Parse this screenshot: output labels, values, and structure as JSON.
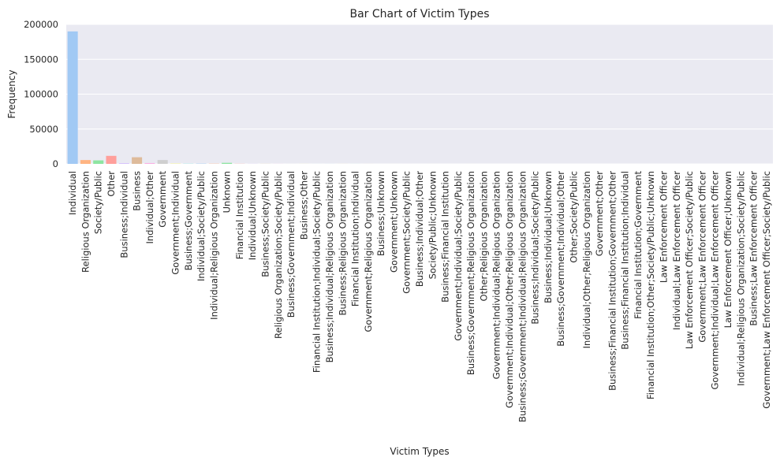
{
  "chart_data": {
    "type": "bar",
    "title": "Bar Chart of Victim Types",
    "xlabel": "Victim Types",
    "ylabel": "Frequency",
    "ylim": [
      0,
      200000
    ],
    "yticks": [
      0,
      50000,
      100000,
      150000,
      200000
    ],
    "grid": true,
    "legend": "none",
    "background": "#EAEAF2",
    "grid_color": "#ffffff",
    "palette": [
      "#A1C9F4",
      "#FFB482",
      "#8DE5A1",
      "#FF9F9B",
      "#D0BBFF",
      "#DEBB9B",
      "#FAB0E4",
      "#CFCFCF",
      "#FFFEA3",
      "#B9F2F0"
    ],
    "categories": [
      "Individual",
      "Religious Organization",
      "Society/Public",
      "Other",
      "Business;Individual",
      "Business",
      "Individual;Other",
      "Government",
      "Government;Individual",
      "Business;Government",
      "Individual;Society/Public",
      "Individual;Religious Organization",
      "Unknown",
      "Financial Institution",
      "Individual;Unknown",
      "Business;Society/Public",
      "Religious Organization;Society/Public",
      "Business;Government;Individual",
      "Business;Other",
      "Financial Institution;Individual;Society/Public",
      "Business;Individual;Religious Organization",
      "Business;Religious Organization",
      "Financial Institution;Individual",
      "Government;Religious Organization",
      "Business;Unknown",
      "Government;Unknown",
      "Government;Society/Public",
      "Business;Individual;Other",
      "Society/Public;Unknown",
      "Business;Financial Institution",
      "Government;Individual;Society/Public",
      "Business;Government;Religious Organization",
      "Other;Religious Organization",
      "Government;Individual;Religious Organization",
      "Government;Individual;Other;Religious Organization",
      "Business;Government;Individual;Religious Organization",
      "Business;Individual;Society/Public",
      "Business;Individual;Unknown",
      "Business;Government;Individual;Other",
      "Other;Society/Public",
      "Individual;Other;Religious Organization",
      "Government;Other",
      "Business;Financial Institution;Government;Other",
      "Business;Financial Institution;Individual",
      "Financial Institution;Government",
      "Financial Institution;Other;Society/Public;Unknown",
      "Law Enforcement Officer",
      "Individual;Law Enforcement Officer",
      "Law Enforcement Officer;Society/Public",
      "Government;Law Enforcement Officer",
      "Government;Individual;Law Enforcement Officer",
      "Law Enforcement Officer;Unknown",
      "Individual;Religious Organization;Society/Public",
      "Business;Law Enforcement Officer",
      "Government;Law Enforcement Officer;Society/Public"
    ],
    "values": [
      190000,
      5500,
      5000,
      11500,
      900,
      9500,
      1200,
      5500,
      600,
      500,
      400,
      300,
      1500,
      200,
      150,
      120,
      100,
      80,
      80,
      60,
      50,
      50,
      40,
      40,
      30,
      30,
      30,
      25,
      25,
      20,
      20,
      15,
      15,
      15,
      10,
      10,
      10,
      10,
      10,
      10,
      8,
      8,
      5,
      5,
      5,
      5,
      5,
      5,
      5,
      5,
      3,
      3,
      3,
      3,
      3
    ]
  }
}
